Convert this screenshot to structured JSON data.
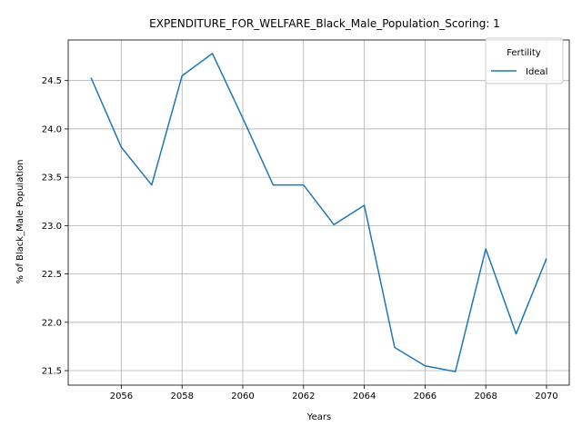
{
  "chart_data": {
    "type": "line",
    "title": "EXPENDITURE_FOR_WELFARE_Black_Male_Population_Scoring: 1",
    "xlabel": "Years",
    "ylabel": "% of Black_Male Population",
    "x": [
      2055,
      2056,
      2057,
      2058,
      2059,
      2060,
      2061,
      2062,
      2063,
      2064,
      2065,
      2066,
      2067,
      2068,
      2069,
      2070
    ],
    "series": [
      {
        "name": "Ideal",
        "color": "#1f77b4",
        "values": [
          24.53,
          23.81,
          23.42,
          24.55,
          24.78,
          24.11,
          23.42,
          23.42,
          23.01,
          23.21,
          21.74,
          21.55,
          21.49,
          22.76,
          21.88,
          22.66
        ]
      }
    ],
    "xlim": [
      2054.25,
      2070.75
    ],
    "ylim": [
      21.35,
      24.92
    ],
    "xticks": [
      2056,
      2058,
      2060,
      2062,
      2064,
      2066,
      2068,
      2070
    ],
    "yticks": [
      21.5,
      22.0,
      22.5,
      23.0,
      23.5,
      24.0,
      24.5
    ],
    "yticks_labels": [
      "21.5",
      "22.0",
      "22.5",
      "23.0",
      "23.5",
      "24.0",
      "24.5"
    ],
    "grid": true,
    "legend": {
      "title": "Fertility",
      "placement": "top-right"
    }
  }
}
